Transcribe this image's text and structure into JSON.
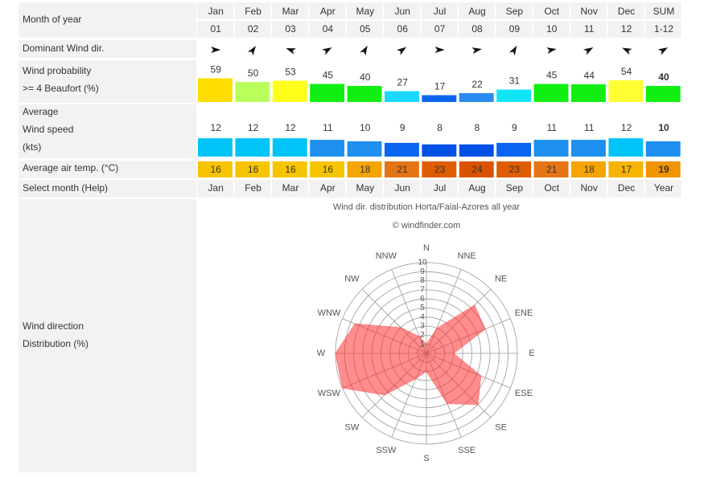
{
  "table": {
    "header": {
      "label": "Month of year",
      "months": [
        "Jan",
        "Feb",
        "Mar",
        "Apr",
        "May",
        "Jun",
        "Jul",
        "Aug",
        "Sep",
        "Oct",
        "Nov",
        "Dec",
        "SUM"
      ],
      "numbers": [
        "01",
        "02",
        "03",
        "04",
        "05",
        "06",
        "07",
        "08",
        "09",
        "10",
        "11",
        "12",
        "1-12"
      ]
    },
    "dominant_wind": {
      "label": "Dominant Wind dir."
    },
    "wind_probability": {
      "label": [
        "Wind probability",
        ">= 4 Beaufort (%)"
      ],
      "values": [
        59,
        50,
        53,
        45,
        40,
        27,
        17,
        22,
        31,
        45,
        44,
        54,
        40
      ],
      "colors": [
        "#ffdd00",
        "#b8ff5c",
        "#ffff1a",
        "#11ee11",
        "#11ee11",
        "#1ad8ff",
        "#0a64f0",
        "#2a8cf0",
        "#10e4f4",
        "#11ee11",
        "#11ee11",
        "#ffff33",
        "#11ee11"
      ]
    },
    "wind_speed": {
      "label": [
        "Average",
        "Wind speed",
        "(kts)"
      ],
      "values": [
        12,
        12,
        12,
        11,
        10,
        9,
        8,
        8,
        9,
        11,
        11,
        12,
        10
      ],
      "colors": [
        "#00c4f8",
        "#00c4f8",
        "#00c4f8",
        "#1e90f0",
        "#1e90f0",
        "#0a64f0",
        "#0050e6",
        "#0050e6",
        "#0a64f0",
        "#1e90f0",
        "#1e90f0",
        "#00c4f8",
        "#1e90f0"
      ]
    },
    "air_temp": {
      "label": "Average air temp. (°C)",
      "values": [
        16,
        16,
        16,
        16,
        18,
        21,
        23,
        24,
        23,
        21,
        18,
        17,
        19
      ],
      "colors": [
        "#f7c400",
        "#f7c400",
        "#f7c400",
        "#f7c400",
        "#f5a400",
        "#e47414",
        "#e05c00",
        "#da5200",
        "#e05c00",
        "#e47414",
        "#f5a400",
        "#f6b400",
        "#f09400"
      ]
    },
    "select_month": {
      "label": "Select month (Help)",
      "links": [
        "Jan",
        "Feb",
        "Mar",
        "Apr",
        "May",
        "Jun",
        "Jul",
        "Aug",
        "Sep",
        "Oct",
        "Nov",
        "Dec",
        "Year"
      ]
    },
    "wind_direction": {
      "label": [
        "Wind direction",
        "Distribution (%)"
      ]
    }
  },
  "chart_data": {
    "type": "radar",
    "title": "Wind dir. distribution Horta/Faial-Azores all year",
    "subtitle": "© windfinder.com",
    "categories": [
      "N",
      "NNE",
      "NE",
      "ENE",
      "E",
      "ESE",
      "SE",
      "SSE",
      "S",
      "SSW",
      "SW",
      "WSW",
      "W",
      "WNW",
      "NW",
      "NNW"
    ],
    "values": [
      1,
      3,
      7.5,
      7,
      3,
      6.5,
      8,
      6,
      2,
      3,
      6.5,
      10,
      10,
      8.5,
      4,
      2
    ],
    "color": "#ff3030",
    "rlim": [
      0,
      10
    ],
    "rticks": [
      1,
      2,
      3,
      4,
      5,
      6,
      7,
      8,
      9,
      10
    ]
  }
}
